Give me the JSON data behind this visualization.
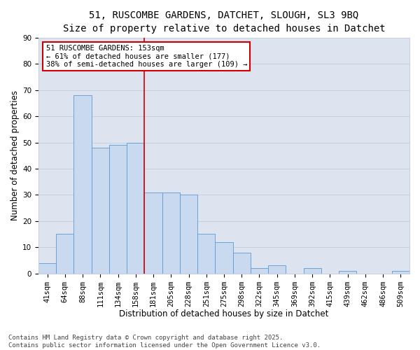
{
  "title_line1": "51, RUSCOMBE GARDENS, DATCHET, SLOUGH, SL3 9BQ",
  "title_line2": "Size of property relative to detached houses in Datchet",
  "xlabel": "Distribution of detached houses by size in Datchet",
  "ylabel": "Number of detached properties",
  "categories": [
    "41sqm",
    "64sqm",
    "88sqm",
    "111sqm",
    "134sqm",
    "158sqm",
    "181sqm",
    "205sqm",
    "228sqm",
    "251sqm",
    "275sqm",
    "298sqm",
    "322sqm",
    "345sqm",
    "369sqm",
    "392sqm",
    "415sqm",
    "439sqm",
    "462sqm",
    "486sqm",
    "509sqm"
  ],
  "values": [
    4,
    15,
    68,
    48,
    49,
    50,
    31,
    31,
    30,
    15,
    12,
    8,
    2,
    3,
    0,
    2,
    0,
    1,
    0,
    0,
    1
  ],
  "bar_color": "#c9d9f0",
  "bar_edge_color": "#5b9bd5",
  "vline_x_idx": 5,
  "vline_color": "#cc0000",
  "annotation_box_text": "51 RUSCOMBE GARDENS: 153sqm\n← 61% of detached houses are smaller (177)\n38% of semi-detached houses are larger (109) →",
  "annotation_box_color": "#cc0000",
  "annotation_bg": "#ffffff",
  "ylim": [
    0,
    90
  ],
  "yticks": [
    0,
    10,
    20,
    30,
    40,
    50,
    60,
    70,
    80,
    90
  ],
  "grid_color": "#c8d0de",
  "plot_bg_color": "#dde4f0",
  "fig_bg_color": "#ffffff",
  "footer_line1": "Contains HM Land Registry data © Crown copyright and database right 2025.",
  "footer_line2": "Contains public sector information licensed under the Open Government Licence v3.0.",
  "title_fontsize": 10,
  "subtitle_fontsize": 9,
  "axis_label_fontsize": 8.5,
  "tick_fontsize": 7.5,
  "footer_fontsize": 6.5,
  "annotation_fontsize": 7.5
}
